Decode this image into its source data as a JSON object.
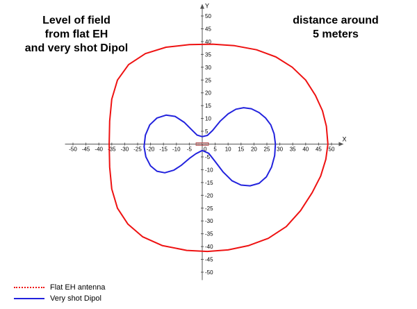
{
  "title": {
    "lines": [
      "Level of field",
      "from flat EH",
      "and very shot Dipol"
    ]
  },
  "annotation": {
    "lines": [
      "distance around",
      "5 meters"
    ]
  },
  "colors": {
    "axis": "#555555",
    "series_eh": "#ee1111",
    "series_dipol": "#2222dd",
    "origin_marker": "#aa4444"
  },
  "chart_data": {
    "type": "line",
    "subtype": "polar-pattern",
    "xlabel": "X",
    "ylabel": "Y",
    "xlim": [
      -52,
      52
    ],
    "ylim": [
      -52,
      52
    ],
    "grid": false,
    "legend_position": "bottom-left",
    "x_ticks": [
      -50,
      -45,
      -40,
      -35,
      -30,
      -25,
      -20,
      -15,
      -10,
      -5,
      5,
      10,
      15,
      20,
      25,
      30,
      35,
      40,
      45,
      50
    ],
    "y_ticks": [
      -50,
      -45,
      -40,
      -35,
      -30,
      -25,
      -20,
      -15,
      -10,
      -5,
      5,
      10,
      15,
      20,
      25,
      30,
      35,
      40,
      45,
      50
    ],
    "origin_label": "0",
    "series": [
      {
        "name": "Flat EH antenna",
        "style": "solid",
        "points": [
          [
            48.6,
            0
          ],
          [
            48.0,
            7
          ],
          [
            46.5,
            13
          ],
          [
            43.8,
            19
          ],
          [
            40.0,
            25
          ],
          [
            34.8,
            30
          ],
          [
            28.5,
            34
          ],
          [
            21.0,
            36.8
          ],
          [
            12.5,
            38.4
          ],
          [
            4.0,
            39.0
          ],
          [
            -5.0,
            38.8
          ],
          [
            -14.0,
            37.8
          ],
          [
            -22.0,
            35.3
          ],
          [
            -28.5,
            31.0
          ],
          [
            -32.8,
            25.0
          ],
          [
            -35.0,
            17.5
          ],
          [
            -35.8,
            9.0
          ],
          [
            -36.0,
            0
          ],
          [
            -35.8,
            -9.0
          ],
          [
            -35.0,
            -17.5
          ],
          [
            -32.8,
            -25.0
          ],
          [
            -28.8,
            -31.2
          ],
          [
            -23.0,
            -36.2
          ],
          [
            -15.5,
            -39.6
          ],
          [
            -6.0,
            -41.5
          ],
          [
            2.0,
            -41.9
          ],
          [
            10.0,
            -41.3
          ],
          [
            18.0,
            -39.6
          ],
          [
            25.5,
            -36.8
          ],
          [
            32.5,
            -32.2
          ],
          [
            38.0,
            -26.0
          ],
          [
            42.5,
            -19.0
          ],
          [
            45.8,
            -12.5
          ],
          [
            47.8,
            -6.0
          ],
          [
            48.6,
            0
          ]
        ]
      },
      {
        "name": "Very shot Dipol",
        "style": "solid",
        "points": [
          [
            0,
            2.9
          ],
          [
            2,
            3.4
          ],
          [
            4,
            5.3
          ],
          [
            7,
            9.0
          ],
          [
            10,
            11.8
          ],
          [
            13,
            13.6
          ],
          [
            16,
            14.2
          ],
          [
            19,
            13.8
          ],
          [
            22,
            12.3
          ],
          [
            24.5,
            10.2
          ],
          [
            26.5,
            7.5
          ],
          [
            27.8,
            4.0
          ],
          [
            28.3,
            0
          ],
          [
            28.0,
            -4.5
          ],
          [
            26.8,
            -9.0
          ],
          [
            24.8,
            -12.8
          ],
          [
            22.0,
            -15.3
          ],
          [
            18.5,
            -16.3
          ],
          [
            15.0,
            -16.0
          ],
          [
            11.5,
            -14.3
          ],
          [
            8.0,
            -10.8
          ],
          [
            5.0,
            -6.8
          ],
          [
            2.5,
            -3.6
          ],
          [
            0,
            -2.5
          ],
          [
            -2.5,
            -3.8
          ],
          [
            -5.0,
            -5.6
          ],
          [
            -8.0,
            -8.2
          ],
          [
            -11.0,
            -10.2
          ],
          [
            -14.5,
            -11.2
          ],
          [
            -17.5,
            -10.6
          ],
          [
            -20.0,
            -8.5
          ],
          [
            -21.8,
            -5.0
          ],
          [
            -22.5,
            -1.0
          ],
          [
            -22.0,
            3.5
          ],
          [
            -20.3,
            7.5
          ],
          [
            -17.5,
            10.2
          ],
          [
            -14.0,
            11.3
          ],
          [
            -10.5,
            10.8
          ],
          [
            -7.0,
            8.5
          ],
          [
            -4.0,
            5.5
          ],
          [
            -2.0,
            3.5
          ],
          [
            0,
            2.9
          ]
        ]
      }
    ]
  }
}
